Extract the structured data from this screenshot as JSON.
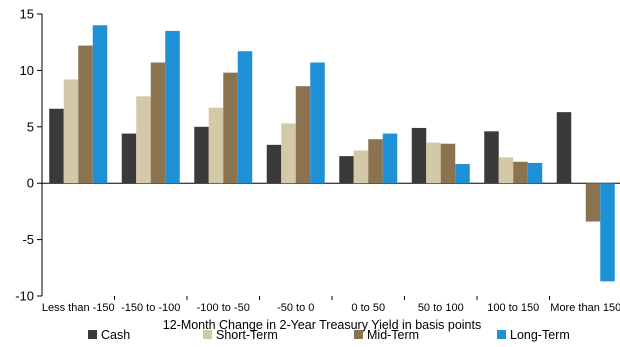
{
  "chart_data": {
    "type": "bar",
    "title": "",
    "xlabel": "12-Month Change in 2-Year Treasury Yield in basis points",
    "ylabel": "",
    "ylim": [
      -10,
      15
    ],
    "yticks": [
      -10,
      -5,
      0,
      5,
      10,
      15
    ],
    "grid": false,
    "legend_position": "bottom",
    "categories": [
      "Less than -150",
      "-150 to -100",
      "-100 to -50",
      "-50 to 0",
      "0 to 50",
      "50 to 100",
      "100 to 150",
      "More than 150"
    ],
    "series": [
      {
        "name": "Cash",
        "color": "#3a3a3a",
        "values": [
          6.6,
          4.4,
          5.0,
          3.4,
          2.4,
          4.9,
          4.6,
          6.3
        ]
      },
      {
        "name": "Short-Term",
        "color": "#d3c8a8",
        "values": [
          9.2,
          7.7,
          6.7,
          5.3,
          2.9,
          3.6,
          2.3,
          0
        ]
      },
      {
        "name": "Mid-Term",
        "color": "#8b7350",
        "values": [
          12.2,
          10.7,
          9.8,
          8.6,
          3.9,
          3.5,
          1.9,
          -3.4
        ]
      },
      {
        "name": "Long-Term",
        "color": "#1f8fd6",
        "values": [
          14.0,
          13.5,
          11.7,
          10.7,
          4.4,
          1.7,
          1.8,
          -8.7
        ]
      }
    ]
  }
}
